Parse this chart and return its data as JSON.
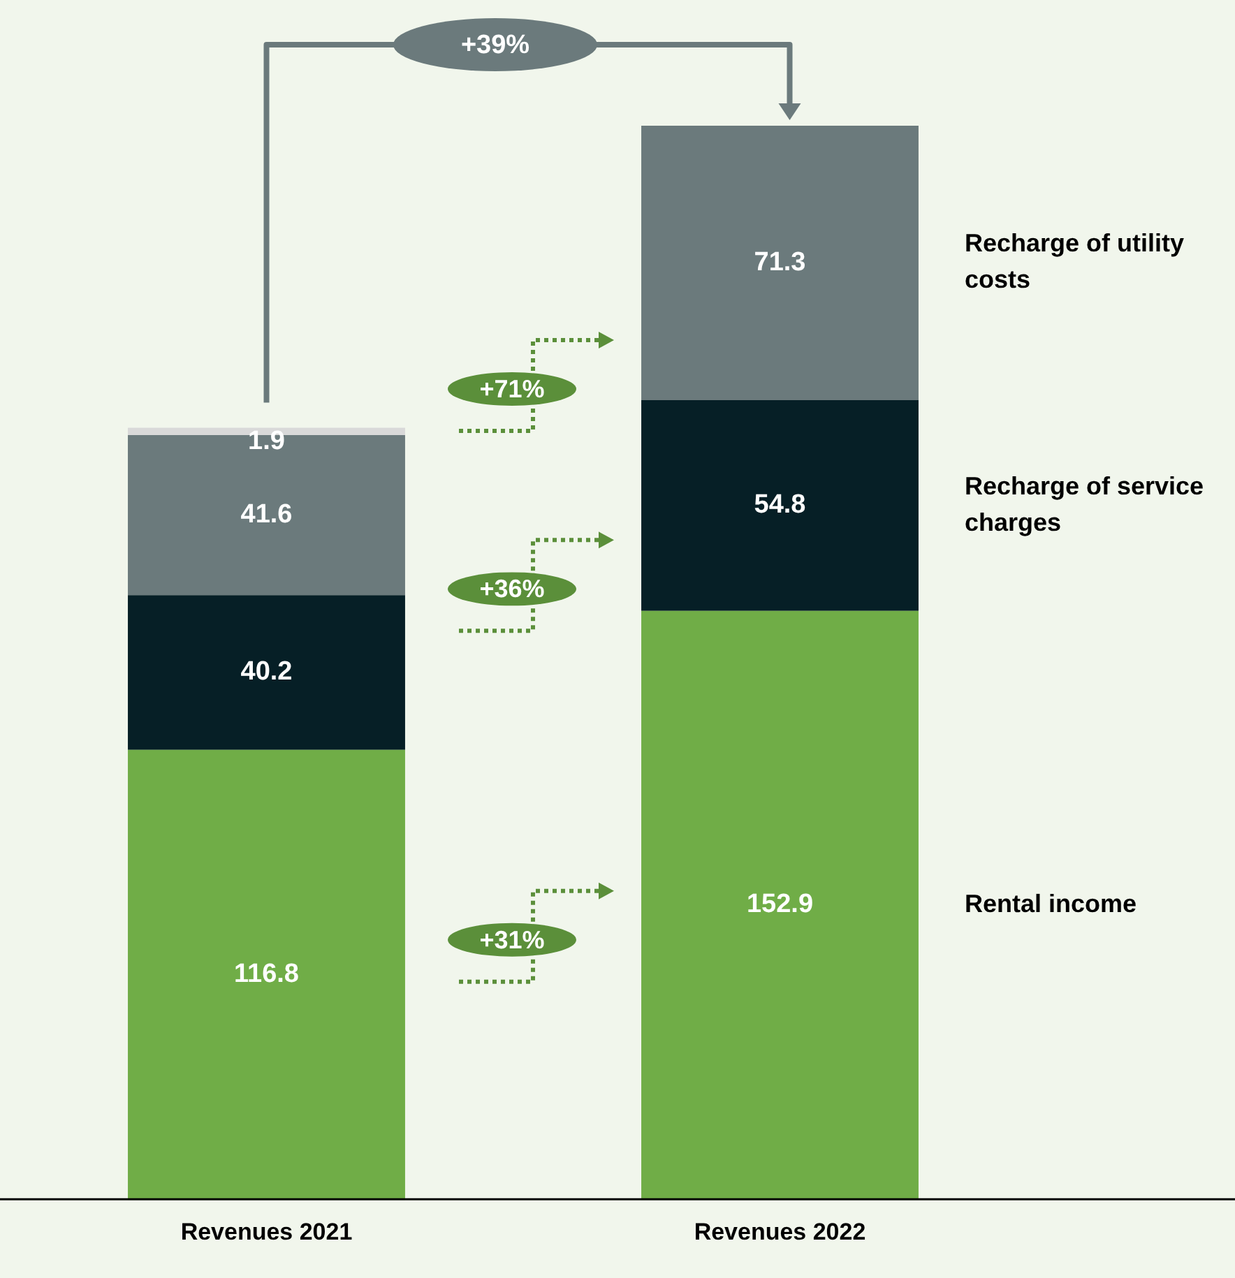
{
  "chart_data": {
    "type": "bar",
    "stacked": true,
    "categories": [
      "Revenues 2021",
      "Revenues 2022"
    ],
    "series": [
      {
        "name": "Rental income",
        "color": "#70ad47",
        "values": [
          116.8,
          152.9
        ]
      },
      {
        "name": "Recharge of service charges",
        "color": "#061f26",
        "values": [
          40.2,
          54.8
        ]
      },
      {
        "name": "Recharge of utility costs",
        "color": "#6b7a7c",
        "values": [
          41.6,
          71.3
        ]
      },
      {
        "color": "#d9d9d9",
        "values": [
          1.9,
          null
        ]
      }
    ],
    "data_labels": true,
    "annotations": [
      "+39%",
      "+71%",
      "+36%",
      "+31%"
    ],
    "legend": false,
    "grid": false,
    "tick_labels": "x"
  }
}
